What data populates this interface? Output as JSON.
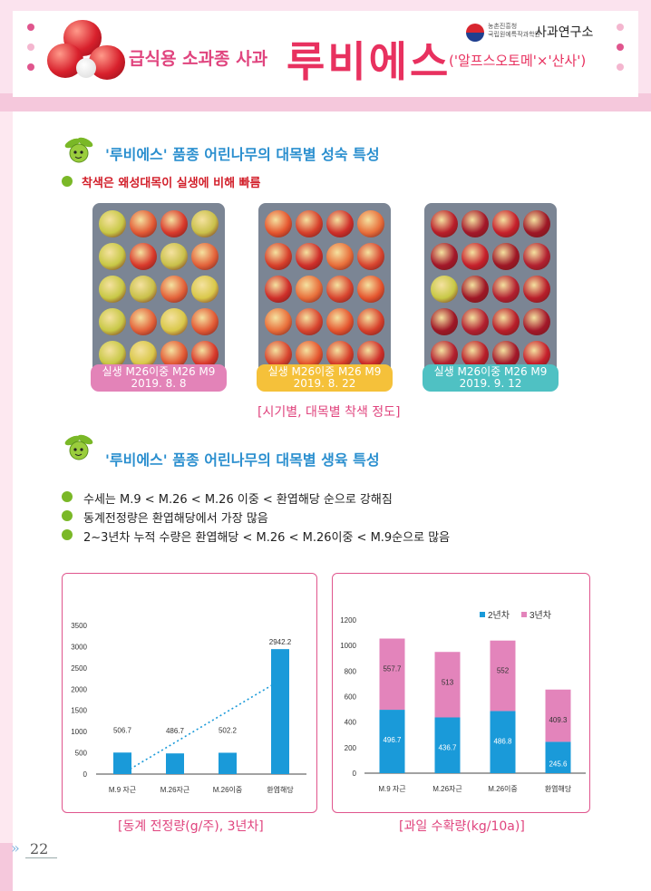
{
  "header": {
    "subtitle": "급식용 소과종 사과",
    "title": "루비에스",
    "paren": "('알프스오토메'×'산사')",
    "logo_small_1": "농촌진흥청",
    "logo_small_2": "국립원예특작과학원",
    "logo_main": "사과연구소"
  },
  "section1": {
    "title": "'루비에스' 품종 어린나무의 대목별 성숙 특성",
    "bullet": "착색은 왜성대목이 실생에 비해 빠름",
    "photos": [
      {
        "caption": "실생 M26이중 M26 M9",
        "date": "2019. 8. 8",
        "color": "#e383b8"
      },
      {
        "caption": "실생 M26이중 M26 M9",
        "date": "2019. 8. 22",
        "color": "#f5c13a"
      },
      {
        "caption": "실생 M26이중 M26 M9",
        "date": "2019. 9. 12",
        "color": "#4fc1c3"
      }
    ],
    "figure_label": "[시기별, 대목별 착색 정도]"
  },
  "section2": {
    "title": "'루비에스' 품종 어린나무의 대목별 생육 특성",
    "bullets": [
      "수세는 M.9 < M.26 < M.26 이중 < 환엽해당 순으로 강해짐",
      "동계전정량은 환엽해당에서 가장 많음",
      "2~3년차 누적 수량은 환엽해당 < M.26 < M.26이중 < M.9순으로 많음"
    ]
  },
  "chart_data": [
    {
      "type": "bar",
      "title": "[동계 전정량(g/주), 3년차]",
      "categories": [
        "M.9 자근",
        "M.26자근",
        "M.26이중",
        "환엽해당"
      ],
      "values": [
        506.7,
        486.7,
        502.2,
        2942.2
      ],
      "value_labels": [
        "506.7",
        "486.7",
        "502.2",
        "2942.2"
      ],
      "ylim": [
        0,
        3500
      ],
      "yticks": [
        "0",
        "500",
        "1000",
        "1500",
        "2000",
        "2500",
        "3000",
        "3500"
      ],
      "trendline": "dotted linear",
      "bar_color": "#1a9ad9",
      "legend": "none"
    },
    {
      "type": "bar",
      "stacked": true,
      "title": "[과일 수확량(kg/10a)]",
      "categories": [
        "M.9 자근",
        "M.26자근",
        "M.26이중",
        "환엽해당"
      ],
      "series": [
        {
          "name": "2년차",
          "values": [
            496.7,
            436.7,
            486.8,
            245.6
          ],
          "labels": [
            "496.7",
            "436.7",
            "486.8",
            "245.6"
          ],
          "color": "#1a9ad9"
        },
        {
          "name": "3년차",
          "values": [
            557.7,
            513,
            552,
            409.3
          ],
          "labels": [
            "557.7",
            "513",
            "552",
            "409.3"
          ],
          "color": "#e384bb"
        }
      ],
      "ylim": [
        0,
        1200
      ],
      "yticks": [
        "0",
        "200",
        "400",
        "600",
        "800",
        "1000",
        "1200"
      ],
      "legend": "top-right"
    }
  ],
  "footer": {
    "page_arrow": "»",
    "page_number": "22"
  }
}
